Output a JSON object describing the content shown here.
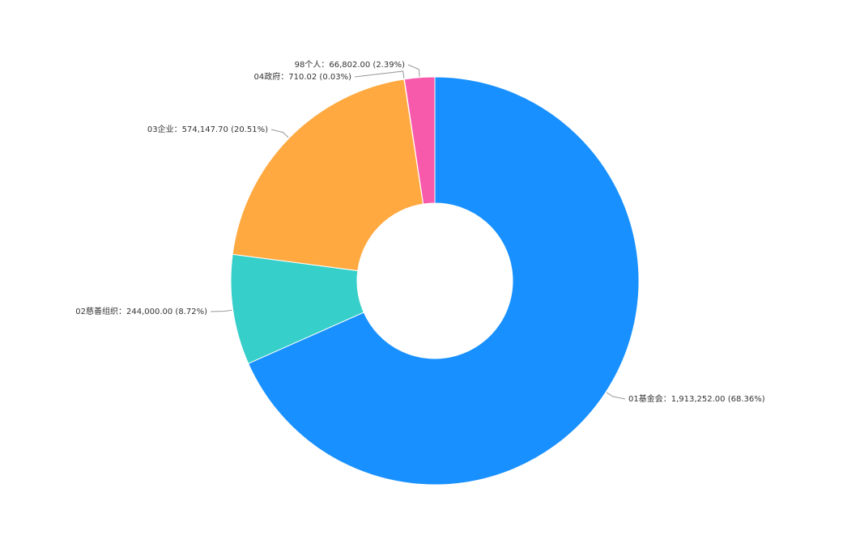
{
  "chart_data": {
    "type": "pie",
    "donut": true,
    "legend": "none",
    "slices": [
      {
        "name": "01基金会",
        "value": 1913252.0,
        "value_text": "1,913,252.00",
        "percent_text": "68.36%",
        "color": "#1890FF",
        "label": "01基金会：1,913,252.00 (68.36%)"
      },
      {
        "name": "02慈善组织",
        "value": 244000.0,
        "value_text": "244,000.00",
        "percent_text": "8.72%",
        "color": "#36CFC9",
        "label": "02慈善组织：244,000.00 (8.72%)"
      },
      {
        "name": "03企业",
        "value": 574147.7,
        "value_text": "574,147.70",
        "percent_text": "20.51%",
        "color": "#FFA940",
        "label": "03企业：574,147.70 (20.51%)"
      },
      {
        "name": "04政府",
        "value": 710.02,
        "value_text": "710.02",
        "percent_text": "0.03%",
        "color": "#FFC53D",
        "label": "04政府：710.02 (0.03%)"
      },
      {
        "name": "98个人",
        "value": 66802.0,
        "value_text": "66,802.00",
        "percent_text": "2.39%",
        "color": "#F759AB",
        "label": "98个人：66,802.00 (2.39%)"
      }
    ]
  }
}
